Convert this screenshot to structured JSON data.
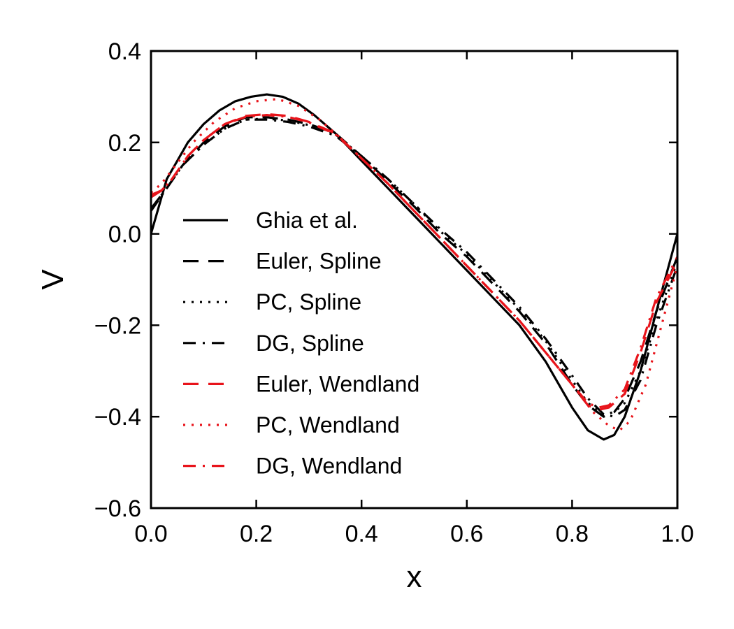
{
  "chart_data": {
    "type": "line",
    "title": "",
    "xlabel": "x",
    "ylabel": "V",
    "xlim": [
      0.0,
      1.0
    ],
    "ylim": [
      -0.6,
      0.4
    ],
    "xticks": [
      0.0,
      0.2,
      0.4,
      0.6,
      0.8,
      1.0
    ],
    "xtick_labels": [
      "0.0",
      "0.2",
      "0.4",
      "0.6",
      "0.8",
      "1.0"
    ],
    "yticks": [
      0.4,
      0.2,
      0.0,
      -0.2,
      -0.4,
      -0.6
    ],
    "ytick_labels": [
      "0.4",
      "0.2",
      "0.0",
      "−0.2",
      "−0.4",
      "−0.6"
    ],
    "grid": false,
    "legend_position": "center-left",
    "series": [
      {
        "name": "Ghia et al.",
        "color": "#000000",
        "style": "solid",
        "x": [
          0.0,
          0.03,
          0.05,
          0.07,
          0.1,
          0.13,
          0.16,
          0.19,
          0.22,
          0.25,
          0.28,
          0.31,
          0.35,
          0.4,
          0.45,
          0.5,
          0.55,
          0.6,
          0.65,
          0.7,
          0.75,
          0.8,
          0.83,
          0.86,
          0.88,
          0.9,
          0.93,
          0.96,
          1.0
        ],
        "y": [
          0.0,
          0.12,
          0.16,
          0.2,
          0.24,
          0.27,
          0.29,
          0.3,
          0.305,
          0.3,
          0.285,
          0.26,
          0.22,
          0.16,
          0.1,
          0.04,
          -0.02,
          -0.08,
          -0.14,
          -0.2,
          -0.28,
          -0.38,
          -0.43,
          -0.45,
          -0.44,
          -0.4,
          -0.3,
          -0.17,
          0.0
        ]
      },
      {
        "name": "Euler, Spline",
        "color": "#000000",
        "style": "dashed",
        "x": [
          0.0,
          0.03,
          0.06,
          0.1,
          0.14,
          0.18,
          0.22,
          0.26,
          0.3,
          0.35,
          0.4,
          0.45,
          0.5,
          0.55,
          0.6,
          0.65,
          0.7,
          0.75,
          0.8,
          0.83,
          0.86,
          0.88,
          0.9,
          0.93,
          0.96,
          1.0
        ],
        "y": [
          0.055,
          0.1,
          0.15,
          0.2,
          0.235,
          0.255,
          0.255,
          0.25,
          0.24,
          0.22,
          0.17,
          0.115,
          0.06,
          0.0,
          -0.05,
          -0.11,
          -0.17,
          -0.24,
          -0.33,
          -0.375,
          -0.4,
          -0.39,
          -0.36,
          -0.28,
          -0.17,
          -0.05
        ]
      },
      {
        "name": "PC, Spline",
        "color": "#000000",
        "style": "dotted",
        "x": [
          0.0,
          0.03,
          0.06,
          0.1,
          0.14,
          0.18,
          0.22,
          0.26,
          0.3,
          0.35,
          0.4,
          0.45,
          0.5,
          0.55,
          0.6,
          0.65,
          0.7,
          0.75,
          0.8,
          0.83,
          0.86,
          0.88,
          0.9,
          0.93,
          0.96,
          1.0
        ],
        "y": [
          0.055,
          0.1,
          0.15,
          0.195,
          0.23,
          0.25,
          0.252,
          0.248,
          0.238,
          0.218,
          0.17,
          0.12,
          0.065,
          0.005,
          -0.045,
          -0.105,
          -0.165,
          -0.235,
          -0.32,
          -0.37,
          -0.395,
          -0.39,
          -0.37,
          -0.3,
          -0.19,
          -0.06
        ]
      },
      {
        "name": "DG, Spline",
        "color": "#000000",
        "style": "dashdot",
        "x": [
          0.0,
          0.03,
          0.06,
          0.1,
          0.14,
          0.18,
          0.22,
          0.26,
          0.3,
          0.35,
          0.4,
          0.45,
          0.5,
          0.55,
          0.6,
          0.65,
          0.7,
          0.75,
          0.8,
          0.83,
          0.86,
          0.88,
          0.9,
          0.93,
          0.96,
          1.0
        ],
        "y": [
          0.05,
          0.1,
          0.15,
          0.195,
          0.23,
          0.25,
          0.25,
          0.245,
          0.235,
          0.215,
          0.17,
          0.12,
          0.065,
          0.01,
          -0.04,
          -0.1,
          -0.16,
          -0.23,
          -0.31,
          -0.36,
          -0.395,
          -0.4,
          -0.385,
          -0.32,
          -0.2,
          -0.07
        ]
      },
      {
        "name": "Euler, Wendland",
        "color": "#e8141b",
        "style": "dashed",
        "x": [
          0.0,
          0.02,
          0.04,
          0.07,
          0.1,
          0.14,
          0.18,
          0.22,
          0.26,
          0.3,
          0.35,
          0.4,
          0.45,
          0.5,
          0.55,
          0.6,
          0.65,
          0.7,
          0.75,
          0.8,
          0.83,
          0.85,
          0.87,
          0.9,
          0.93,
          0.96,
          1.0
        ],
        "y": [
          0.085,
          0.095,
          0.12,
          0.17,
          0.205,
          0.24,
          0.258,
          0.262,
          0.258,
          0.245,
          0.22,
          0.165,
          0.11,
          0.05,
          -0.01,
          -0.07,
          -0.13,
          -0.19,
          -0.26,
          -0.33,
          -0.375,
          -0.385,
          -0.38,
          -0.35,
          -0.26,
          -0.15,
          -0.06
        ]
      },
      {
        "name": "PC, Wendland",
        "color": "#e8141b",
        "style": "dotted",
        "x": [
          0.0,
          0.02,
          0.05,
          0.08,
          0.12,
          0.16,
          0.2,
          0.24,
          0.28,
          0.32,
          0.36,
          0.4,
          0.45,
          0.5,
          0.55,
          0.6,
          0.65,
          0.7,
          0.75,
          0.8,
          0.84,
          0.87,
          0.89,
          0.91,
          0.94,
          0.97,
          1.0
        ],
        "y": [
          0.09,
          0.11,
          0.155,
          0.2,
          0.245,
          0.275,
          0.29,
          0.295,
          0.28,
          0.25,
          0.21,
          0.165,
          0.11,
          0.05,
          -0.01,
          -0.07,
          -0.13,
          -0.19,
          -0.26,
          -0.33,
          -0.39,
          -0.42,
          -0.43,
          -0.41,
          -0.33,
          -0.2,
          -0.07
        ]
      },
      {
        "name": "DG, Wendland",
        "color": "#e8141b",
        "style": "dashdot",
        "x": [
          0.0,
          0.02,
          0.04,
          0.07,
          0.1,
          0.14,
          0.18,
          0.22,
          0.26,
          0.3,
          0.35,
          0.4,
          0.45,
          0.5,
          0.55,
          0.6,
          0.65,
          0.7,
          0.75,
          0.8,
          0.83,
          0.85,
          0.87,
          0.9,
          0.93,
          0.96,
          1.0
        ],
        "y": [
          0.08,
          0.095,
          0.12,
          0.17,
          0.205,
          0.24,
          0.256,
          0.26,
          0.256,
          0.244,
          0.218,
          0.165,
          0.11,
          0.05,
          -0.01,
          -0.07,
          -0.13,
          -0.19,
          -0.26,
          -0.33,
          -0.37,
          -0.38,
          -0.375,
          -0.34,
          -0.25,
          -0.14,
          -0.05
        ]
      }
    ]
  }
}
